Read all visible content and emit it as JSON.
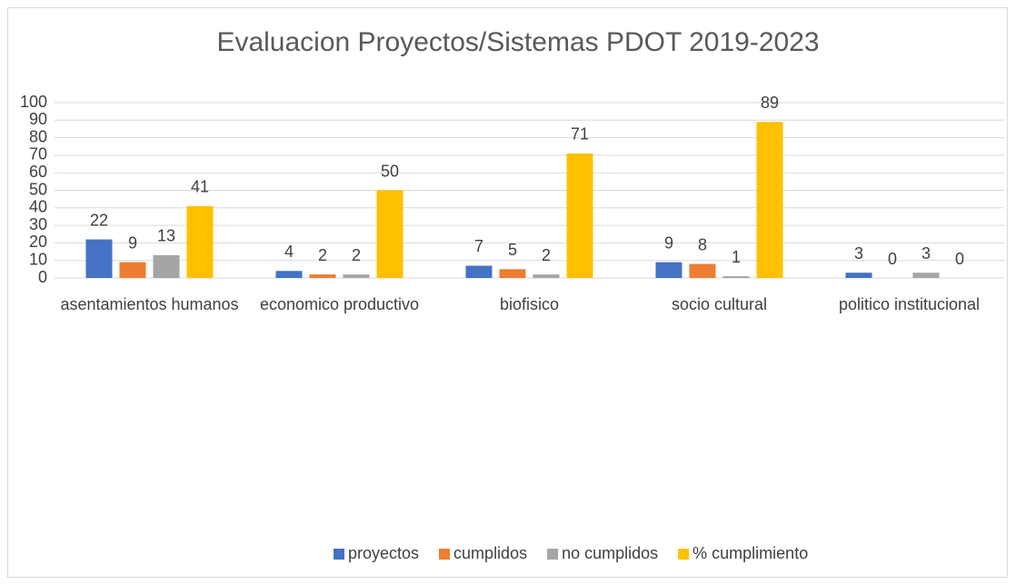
{
  "chart_data": {
    "type": "bar",
    "title": "Evaluacion Proyectos/Sistemas  PDOT 2019-2023",
    "categories": [
      "asentamientos humanos",
      "economico productivo",
      "biofisico",
      "socio cultural",
      "politico institucional"
    ],
    "series": [
      {
        "name": "proyectos",
        "color": "#4472c4",
        "values": [
          22,
          4,
          7,
          9,
          3
        ]
      },
      {
        "name": "cumplidos",
        "color": "#ed7d31",
        "values": [
          9,
          2,
          5,
          8,
          0
        ]
      },
      {
        "name": "no cumplidos",
        "color": "#a5a5a5",
        "values": [
          13,
          2,
          2,
          1,
          3
        ]
      },
      {
        "name": "% cumplimiento",
        "color": "#ffc000",
        "values": [
          41,
          50,
          71,
          89,
          0
        ]
      }
    ],
    "ylim": [
      0,
      100
    ],
    "yticks": [
      0,
      10,
      20,
      30,
      40,
      50,
      60,
      70,
      80,
      90,
      100
    ],
    "grid": true,
    "legend": "bottom"
  }
}
